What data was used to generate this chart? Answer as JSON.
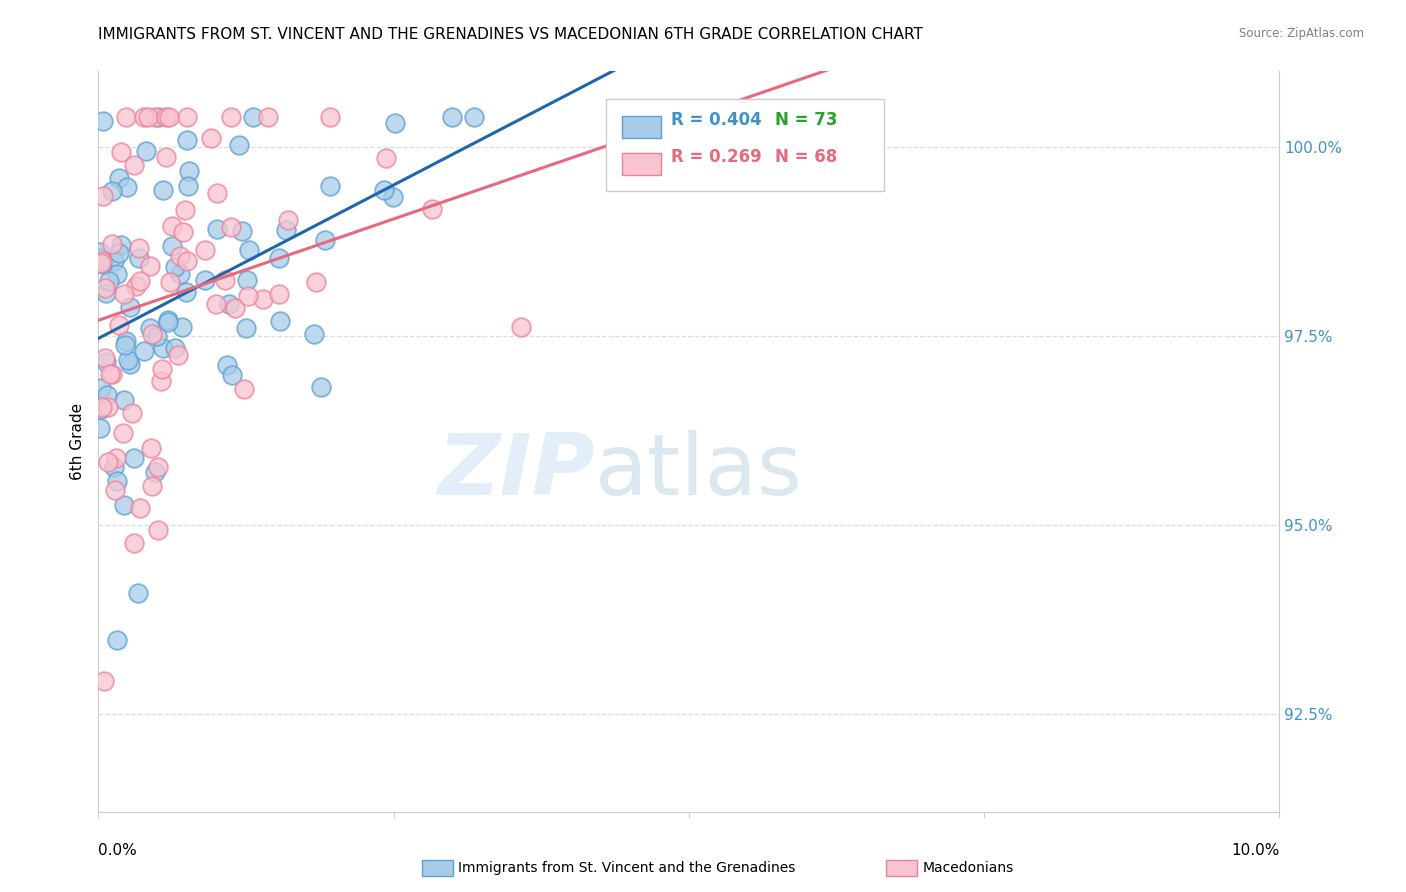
{
  "title": "IMMIGRANTS FROM ST. VINCENT AND THE GRENADINES VS MACEDONIAN 6TH GRADE CORRELATION CHART",
  "source": "Source: ZipAtlas.com",
  "ylabel": "6th Grade",
  "yticks": [
    92.5,
    95.0,
    97.5,
    100.0
  ],
  "ytick_labels": [
    "92.5%",
    "95.0%",
    "97.5%",
    "100.0%"
  ],
  "xmin": 0.0,
  "xmax": 10.0,
  "ymin": 91.2,
  "ymax": 101.0,
  "legend_blue_r": "R = 0.404",
  "legend_blue_n": "N = 73",
  "legend_pink_r": "R = 0.269",
  "legend_pink_n": "N = 68",
  "blue_scatter_face": "#a8cce8",
  "blue_scatter_edge": "#5a9fd4",
  "pink_scatter_face": "#f9c4d0",
  "pink_scatter_edge": "#f08098",
  "blue_line_color": "#2166ac",
  "pink_line_color": "#e8697d",
  "grid_color": "#dddddd",
  "label1": "Immigrants from St. Vincent and the Grenadines",
  "label2": "Macedonians",
  "watermark_zip_color": "#cce0f5",
  "watermark_atlas_color": "#b0ccdf",
  "title_fontsize": 11,
  "axis_tick_color": "#4292c6",
  "axis_tick_fontsize": 11,
  "blue_legend_r_color": "#4292c6",
  "blue_legend_n_color": "#2ca02c",
  "pink_legend_color": "#e8697d"
}
